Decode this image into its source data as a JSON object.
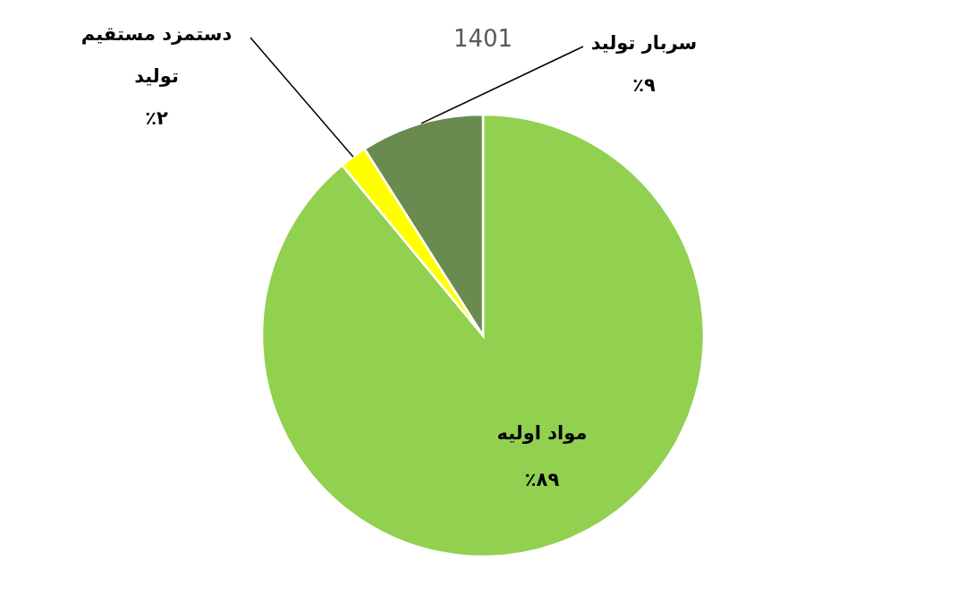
{
  "chart_data": {
    "type": "pie",
    "title": "1401",
    "categories": [
      "مواد اولیه",
      "دستمزد مستقیم تولید",
      "سربار تولید"
    ],
    "values": [
      89,
      2,
      9
    ],
    "colors": [
      "#92d050",
      "#ffff00",
      "#6a8b4f"
    ],
    "value_labels": [
      "٪۸۹",
      "٪۲",
      "٪۹"
    ]
  }
}
